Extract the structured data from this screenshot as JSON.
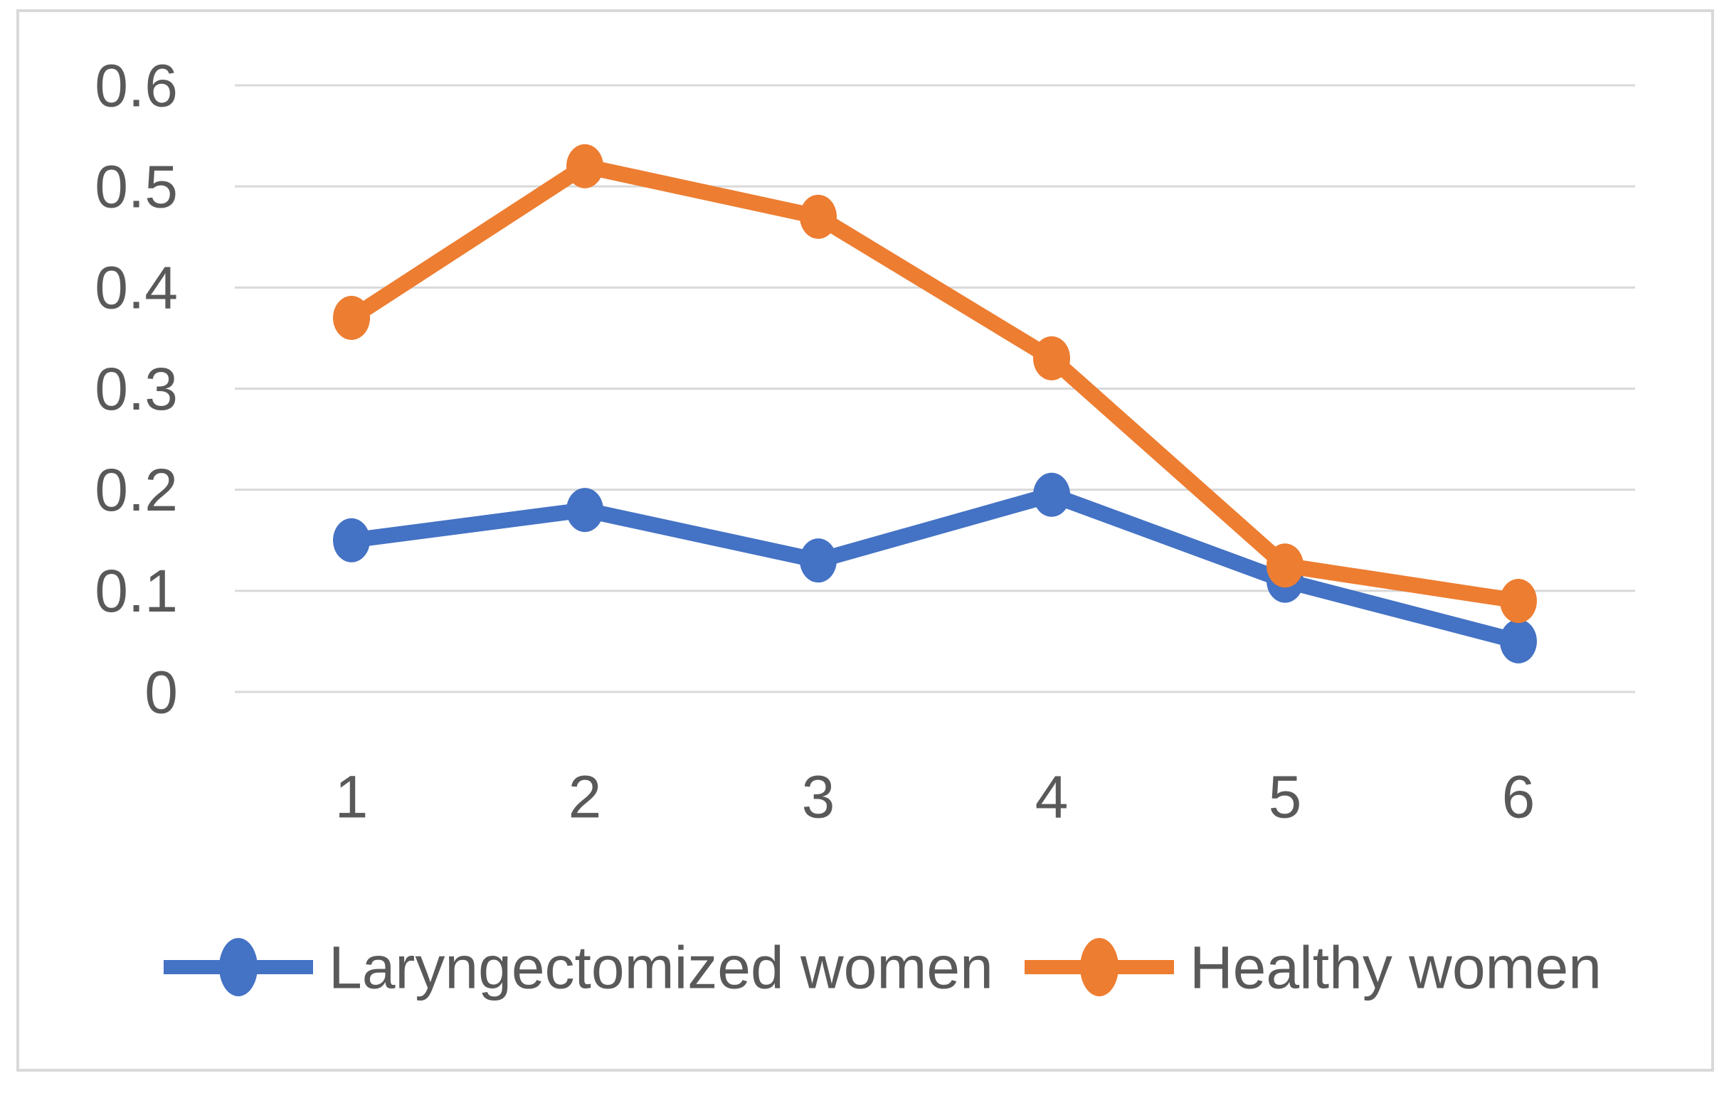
{
  "figure": {
    "background": "#FFFFFF",
    "border_color": "#D9D9D9"
  },
  "axis": {
    "tick_color": "#595959",
    "gridline_color": "#D9D9D9"
  },
  "chart_data": {
    "type": "line",
    "categories": [
      "1",
      "2",
      "3",
      "4",
      "5",
      "6"
    ],
    "series": [
      {
        "name": "Laryngectomized women",
        "color": "#4472C4",
        "values": [
          0.15,
          0.18,
          0.13,
          0.195,
          0.11,
          0.05
        ]
      },
      {
        "name": "Healthy women",
        "color": "#ED7D31",
        "values": [
          0.37,
          0.52,
          0.47,
          0.33,
          0.125,
          0.09
        ]
      }
    ],
    "title": "",
    "xlabel": "",
    "ylabel": "",
    "ylim": [
      0,
      0.6
    ],
    "yticks": [
      "0",
      "0.1",
      "0.2",
      "0.3",
      "0.4",
      "0.5",
      "0.6"
    ],
    "grid": true,
    "legend_position": "bottom",
    "marker": "circle"
  }
}
